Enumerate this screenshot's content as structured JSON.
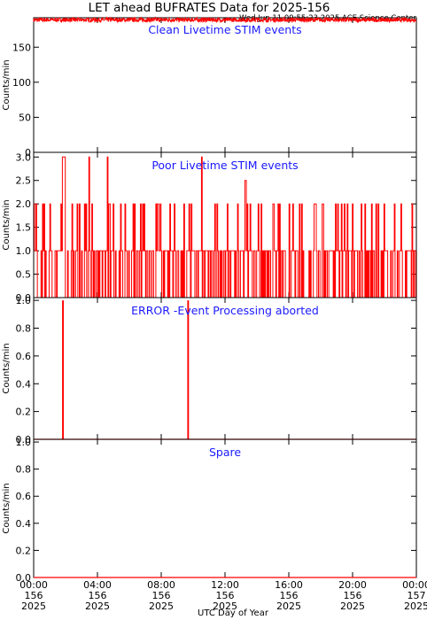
{
  "header": {
    "title": "LET ahead BUFRATES Data for 2025-156",
    "timestamp": "Wed Jun 11 09:55:23 2025 ACE Science Center"
  },
  "chart_data": [
    {
      "type": "line",
      "title": "Clean Livetime STIM events",
      "ylabel": "Counts/min",
      "ylim": [
        0,
        192
      ],
      "yticks": [
        0,
        50,
        100,
        150
      ],
      "color": "#ff0000",
      "series_description": "1-minute samples, noisy near 190",
      "series": [
        {
          "values_level": 190,
          "values_noise": [
            186,
            192
          ]
        }
      ]
    },
    {
      "type": "line",
      "title": "Poor Livetime STIM events",
      "ylabel": "Counts/min",
      "ylim": [
        0,
        3.1
      ],
      "yticks": [
        "0.0",
        "0.5",
        "1.0",
        "1.5",
        "2.0",
        "2.5",
        "3.0"
      ],
      "color": "#ff0000",
      "series": [
        {
          "spikes_to_2": [
            0.0,
            0.16,
            0.54,
            0.64,
            1.02,
            1.7,
            1.95,
            2.4,
            2.72,
            2.85,
            3.19,
            3.26,
            3.64,
            4.7,
            4.75,
            4.97,
            5.46,
            5.74,
            6.21,
            6.33,
            6.67,
            6.81,
            6.92,
            7.65,
            7.77,
            7.8,
            7.94,
            8.53,
            8.8,
            9.43,
            9.75,
            9.89,
            11.35,
            11.49,
            12.15,
            12.8,
            13.37,
            13.55,
            14.06,
            14.26,
            14.99,
            15.05,
            15.3,
            15.43,
            16.02,
            16.23,
            16.65,
            16.82,
            17.59,
            17.63,
            17.7,
            18.07,
            18.15,
            18.93,
            19.05,
            19.31,
            19.49,
            19.64,
            19.97,
            20.52,
            20.75,
            21.17,
            21.44,
            21.62,
            21.95,
            22.62,
            23.04,
            23.72,
            23.73
          ],
          "spikes_to_3": [
            1.78,
            1.84,
            1.88,
            1.93,
            3.48,
            4.63,
            10.5
          ],
          "spikes_to_2_5": [
            13.25,
            13.27
          ],
          "baseline_segments_at_1": [
            [
              0.0,
              23.9
            ]
          ]
        }
      ]
    },
    {
      "type": "line",
      "title": "ERROR -Event Processing aborted",
      "ylabel": "Counts/min",
      "ylim": [
        0,
        1.02
      ],
      "yticks": [
        "0.0",
        "0.2",
        "0.4",
        "0.6",
        "0.8",
        "1.0"
      ],
      "color": "#ff0000",
      "series": [
        {
          "spikes_to_1": [
            1.82,
            9.67
          ],
          "baseline": 0
        }
      ]
    },
    {
      "type": "line",
      "title": "Spare",
      "ylabel": "Counts/min",
      "ylim": [
        0,
        1.02
      ],
      "yticks": [
        "0.0",
        "0.2",
        "0.4",
        "0.6",
        "0.8",
        "1.0"
      ],
      "color": "#ff0000",
      "series": [
        {
          "baseline": 0
        }
      ]
    }
  ],
  "x_axis": {
    "xlabel": "UTC Day of Year",
    "xlim_hours": [
      0,
      24
    ],
    "ticks": [
      {
        "hour": 0,
        "time": "00:00",
        "doy": "156",
        "year": "2025"
      },
      {
        "hour": 4,
        "time": "04:00",
        "doy": "156",
        "year": "2025"
      },
      {
        "hour": 8,
        "time": "08:00",
        "doy": "156",
        "year": "2025"
      },
      {
        "hour": 12,
        "time": "12:00",
        "doy": "156",
        "year": "2025"
      },
      {
        "hour": 16,
        "time": "16:00",
        "doy": "156",
        "year": "2025"
      },
      {
        "hour": 20,
        "time": "20:00",
        "doy": "156",
        "year": "2025"
      },
      {
        "hour": 24,
        "time": "00:00",
        "doy": "157",
        "year": "2025"
      }
    ]
  }
}
